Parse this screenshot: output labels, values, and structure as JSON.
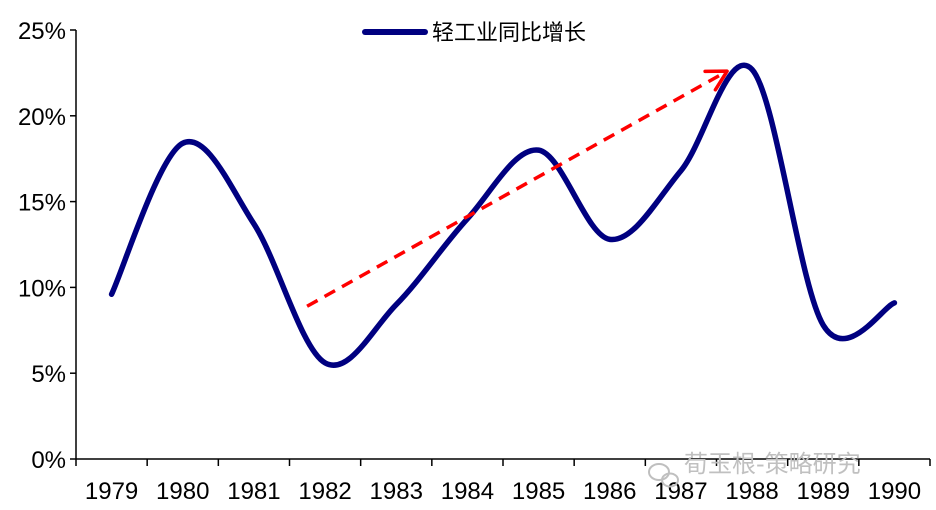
{
  "chart_data": {
    "type": "line",
    "x": [
      "1979",
      "1980",
      "1981",
      "1982",
      "1983",
      "1984",
      "1985",
      "1986",
      "1987",
      "1988",
      "1989",
      "1990"
    ],
    "series": [
      {
        "name": "轻工业同比增长",
        "values": [
          9.6,
          18.4,
          13.7,
          5.6,
          9.0,
          14.0,
          18.0,
          12.8,
          16.8,
          22.7,
          7.8,
          9.1
        ],
        "color": "#000080"
      }
    ],
    "yticks": [
      "0%",
      "5%",
      "10%",
      "15%",
      "20%",
      "25%"
    ],
    "ylim": [
      0,
      25
    ],
    "grid": false,
    "legend": "top-center",
    "trend_arrow": {
      "from": {
        "x": "1982",
        "y": 8.9
      },
      "to": {
        "x": "1988",
        "y": 22.6
      },
      "color": "#ff0000",
      "style": "dashed"
    }
  },
  "watermark": {
    "text": "荀玉根-策略研究",
    "icon": "wechat-icon"
  }
}
